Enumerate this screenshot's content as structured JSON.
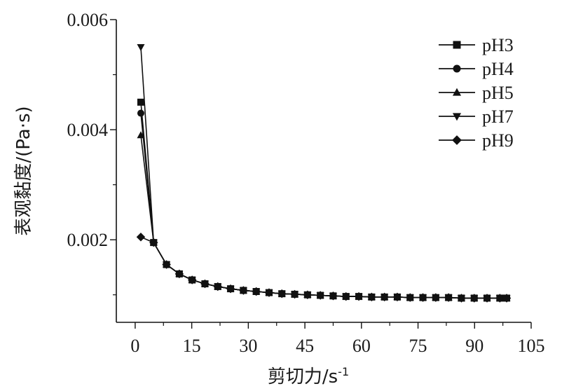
{
  "chart_data": {
    "type": "line",
    "title": "",
    "xlabel": "剪切力/s",
    "xlabel_sup": "-1",
    "ylabel": "表观黏度/(Pa·s)",
    "xlim": [
      -5,
      105
    ],
    "ylim": [
      0.0005,
      0.006
    ],
    "xticks": [
      "0",
      "15",
      "30",
      "45",
      "60",
      "75",
      "90",
      "105"
    ],
    "xtick_values": [
      0,
      15,
      30,
      45,
      60,
      75,
      90,
      105
    ],
    "yticks": [
      "0.002",
      "0.004",
      "0.006"
    ],
    "ytick_values": [
      0.002,
      0.004,
      0.006
    ],
    "grid": false,
    "legend_position": "top-right",
    "x": [
      1.5,
      4.9,
      8.3,
      11.7,
      15.1,
      18.5,
      21.9,
      25.3,
      28.7,
      32.1,
      35.5,
      38.9,
      42.3,
      45.7,
      49.1,
      52.5,
      55.9,
      59.3,
      62.7,
      66.1,
      69.5,
      72.9,
      76.3,
      79.7,
      83.1,
      86.5,
      89.9,
      93.3,
      96.7,
      98.5
    ],
    "series": [
      {
        "name": "pH3",
        "marker": "square",
        "color": "#111111",
        "values": [
          0.0045,
          0.00195,
          0.00155,
          0.00138,
          0.00127,
          0.0012,
          0.00115,
          0.00111,
          0.00108,
          0.00106,
          0.00104,
          0.00102,
          0.00101,
          0.001,
          0.00099,
          0.00098,
          0.00097,
          0.00097,
          0.00096,
          0.00096,
          0.00096,
          0.00095,
          0.00095,
          0.00095,
          0.00095,
          0.00094,
          0.00094,
          0.00094,
          0.00094,
          0.00094
        ]
      },
      {
        "name": "pH4",
        "marker": "circle",
        "color": "#111111",
        "values": [
          0.0043,
          0.00195,
          0.00155,
          0.00138,
          0.00127,
          0.0012,
          0.00115,
          0.00111,
          0.00108,
          0.00106,
          0.00104,
          0.00102,
          0.00101,
          0.001,
          0.00099,
          0.00098,
          0.00097,
          0.00097,
          0.00096,
          0.00096,
          0.00096,
          0.00095,
          0.00095,
          0.00095,
          0.00095,
          0.00094,
          0.00094,
          0.00094,
          0.00094,
          0.00094
        ]
      },
      {
        "name": "pH5",
        "marker": "triangle-up",
        "color": "#111111",
        "values": [
          0.0039,
          0.00195,
          0.00155,
          0.00138,
          0.00127,
          0.0012,
          0.00115,
          0.00111,
          0.00108,
          0.00106,
          0.00104,
          0.00102,
          0.00101,
          0.001,
          0.00099,
          0.00098,
          0.00097,
          0.00097,
          0.00096,
          0.00096,
          0.00096,
          0.00095,
          0.00095,
          0.00095,
          0.00095,
          0.00094,
          0.00094,
          0.00094,
          0.00094,
          0.00094
        ]
      },
      {
        "name": "pH7",
        "marker": "triangle-down",
        "color": "#111111",
        "values": [
          0.0055,
          0.00195,
          0.00155,
          0.00138,
          0.00127,
          0.0012,
          0.00115,
          0.00111,
          0.00108,
          0.00106,
          0.00104,
          0.00102,
          0.00101,
          0.001,
          0.00099,
          0.00098,
          0.00097,
          0.00097,
          0.00096,
          0.00096,
          0.00096,
          0.00095,
          0.00095,
          0.00095,
          0.00095,
          0.00094,
          0.00094,
          0.00094,
          0.00094,
          0.00094
        ]
      },
      {
        "name": "pH9",
        "marker": "diamond",
        "color": "#111111",
        "values": [
          0.00205,
          0.00195,
          0.00155,
          0.00138,
          0.00127,
          0.0012,
          0.00115,
          0.00111,
          0.00108,
          0.00106,
          0.00104,
          0.00102,
          0.00101,
          0.001,
          0.00099,
          0.00098,
          0.00097,
          0.00097,
          0.00096,
          0.00096,
          0.00096,
          0.00095,
          0.00095,
          0.00095,
          0.00095,
          0.00094,
          0.00094,
          0.00094,
          0.00094,
          0.00094
        ]
      }
    ]
  }
}
